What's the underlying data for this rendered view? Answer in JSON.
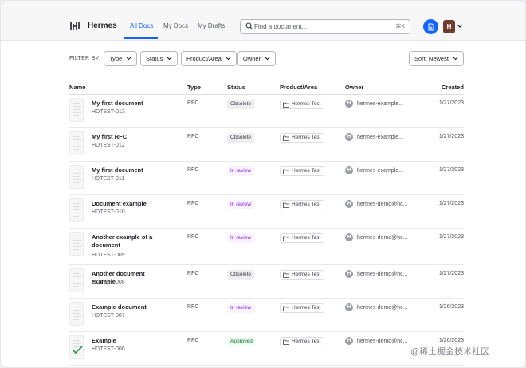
{
  "app": {
    "name": "Hermes"
  },
  "nav": {
    "tabs": [
      {
        "label": "All Docs",
        "active": true
      },
      {
        "label": "My Docs",
        "active": false
      },
      {
        "label": "My Drafts",
        "active": false
      }
    ]
  },
  "search": {
    "placeholder": "Find a document...",
    "shortcut": "⌘K"
  },
  "user": {
    "initial": "H"
  },
  "filters": {
    "label": "FILTER BY:",
    "buttons": [
      "Type",
      "Status",
      "Product/Area",
      "Owner"
    ],
    "sort": "Sort: Newest"
  },
  "table": {
    "headers": [
      "Name",
      "Type",
      "Status",
      "Product/Area",
      "Owner",
      "Created"
    ],
    "rows": [
      {
        "title": "My first document",
        "id": "HDTEST-013",
        "type": "RFC",
        "status": "Obsolete",
        "status_kind": "obsolete",
        "product": "Hermes Test",
        "owner_initial": "H",
        "owner": "hermes-example...",
        "created": "1/27/2023"
      },
      {
        "title": "My first RFC",
        "id": "HDTEST-012",
        "type": "RFC",
        "status": "Obsolete",
        "status_kind": "obsolete",
        "product": "Hermes Test",
        "owner_initial": "H",
        "owner": "hermes-example...",
        "created": "1/27/2023"
      },
      {
        "title": "My first document",
        "id": "HDTEST-011",
        "type": "RFC",
        "status": "In review",
        "status_kind": "review",
        "product": "Hermes Test",
        "owner_initial": "H",
        "owner": "hermes-example...",
        "created": "1/27/2023"
      },
      {
        "title": "Document example",
        "id": "HDTEST-010",
        "type": "RFC",
        "status": "In review",
        "status_kind": "review",
        "product": "Hermes Test",
        "owner_initial": "H",
        "owner": "hermes-demo@hc...",
        "created": "1/27/2023"
      },
      {
        "title": "Another example of a document",
        "id": "HDTEST-009",
        "type": "RFC",
        "status": "In review",
        "status_kind": "review",
        "product": "Hermes Test",
        "owner_initial": "H",
        "owner": "hermes-demo@hc...",
        "created": "1/27/2023"
      },
      {
        "title": "Another document example",
        "id": "HDTEST-008",
        "type": "RFC",
        "status": "Obsolete",
        "status_kind": "obsolete",
        "product": "Hermes Test",
        "owner_initial": "H",
        "owner": "hermes-demo@hc...",
        "created": "1/27/2023"
      },
      {
        "title": "Example document",
        "id": "HDTEST-007",
        "type": "RFC",
        "status": "In review",
        "status_kind": "review",
        "product": "Hermes Test",
        "owner_initial": "H",
        "owner": "hermes-demo@hc...",
        "created": "1/26/2023"
      },
      {
        "title": "Example",
        "id": "HDTEST-006",
        "type": "RFC",
        "status": "Approved",
        "status_kind": "approved",
        "product": "Hermes Test",
        "owner_initial": "H",
        "owner": "hermes-demo@hc...",
        "created": "1/26/2023"
      }
    ]
  },
  "watermark": "@稀土掘金技术社区"
}
